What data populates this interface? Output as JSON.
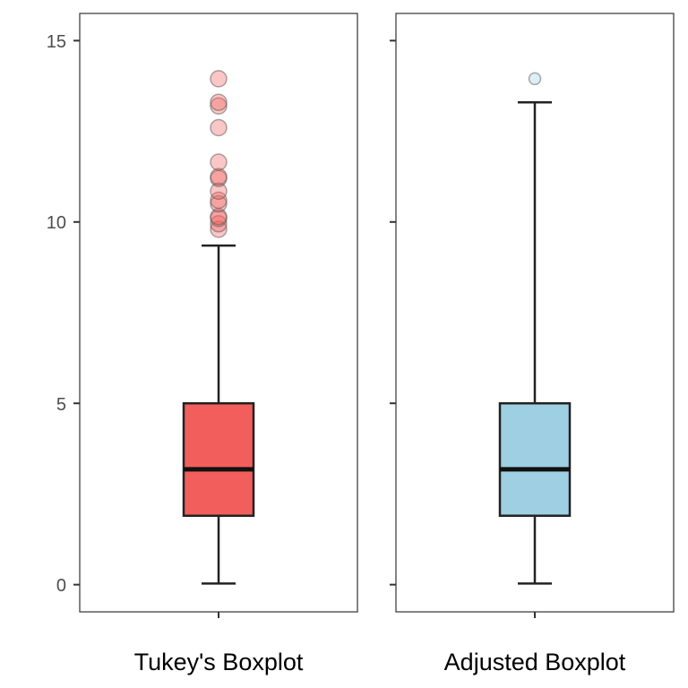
{
  "chart_data": {
    "type": "boxplot",
    "ylim": [
      -0.75,
      15.75
    ],
    "y_ticks": [
      0,
      5,
      10,
      15
    ],
    "y_tick_labels": [
      "0",
      "5",
      "10",
      "15"
    ],
    "grid": false,
    "panels": [
      {
        "label": "Tukey's Boxplot",
        "fill": "#f25e5c",
        "outlier_fill": "#f25e5c",
        "outlier_opacity": 0.35,
        "stats": {
          "whisker_low": 0.03,
          "q1": 1.9,
          "median": 3.18,
          "q3": 5.0,
          "whisker_high": 9.35
        },
        "outliers": [
          9.8,
          9.95,
          10.1,
          10.15,
          10.5,
          10.6,
          10.85,
          11.2,
          11.25,
          11.65,
          12.6,
          13.2,
          13.3,
          13.95
        ]
      },
      {
        "label": "Adjusted Boxplot",
        "fill": "#9ecfe2",
        "outlier_fill": "#9ecfe2",
        "outlier_opacity": 0.35,
        "stats": {
          "whisker_low": 0.03,
          "q1": 1.9,
          "median": 3.18,
          "q3": 5.0,
          "whisker_high": 13.3
        },
        "outliers": [
          13.95
        ]
      }
    ]
  }
}
